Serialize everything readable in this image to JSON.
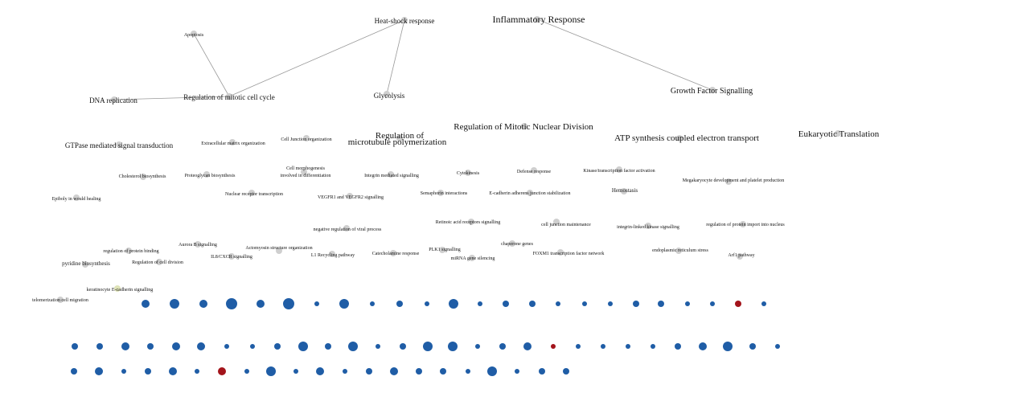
{
  "colors": {
    "edge": "#9a9a9a",
    "gray_node": "#cfcfcf",
    "yellow_node": "#dfe3b8",
    "blue_node": "#1f5da6",
    "red_node": "#a3141b"
  },
  "labels": [
    "Apoptosis",
    "Heat-shock response",
    "Inflammatory Response",
    "DNA replication",
    "Regulation of mitotic cell cycle",
    "Glycolysis",
    "Growth Factor Signalling",
    "Regulation of",
    "microtubule polymerization",
    "Regulation of Mitotic Nuclear Division",
    "ATP synthesis coupled electron transport",
    "Eukaryotic Translation",
    "GTPase mediated signal transduction",
    "Extracellular matrix organization",
    "Cell Junction organization",
    "Cholesterol biosynthesis",
    "Proteoglycan biosynthesis",
    "Cell morphogenesis",
    "involved in differentiation",
    "Integrin mediated signalling",
    "Cytokinesis",
    "Defense response",
    "Kinase/transcription factor activation",
    "Megakaryocyte development and platelet production",
    "Epiboly in would healing",
    "Nuclear receptor transcription",
    "VEGFR1 and VEGFR2 signalling",
    "Semaphorin interactions",
    "E-cadherin adherens junction stabilization",
    "Hemostasis",
    "Retinoic acid receptors signalling",
    "cell junction maintenance",
    "integrin-linked kinase signalling",
    "regulation of protein import into nucleus",
    "negative regulation of viral process",
    "Aurora B signalling",
    "Actomyosin structure organization",
    "chaperone genes",
    "regulation of protein binding",
    "IL8/CXCR signalling",
    "L1 Recycling pathway",
    "Catecholamine response",
    "PLK1 signalling",
    "endoplasmic reticulum stress",
    "FOXM1 transcription factor network",
    "Arf1 pathway",
    "pyridine biosynthesis",
    "Regulation of cell division",
    "miRNA gene silencing",
    "keratinocyte E-cadherin signalling",
    "telomerization cell migration"
  ]
}
